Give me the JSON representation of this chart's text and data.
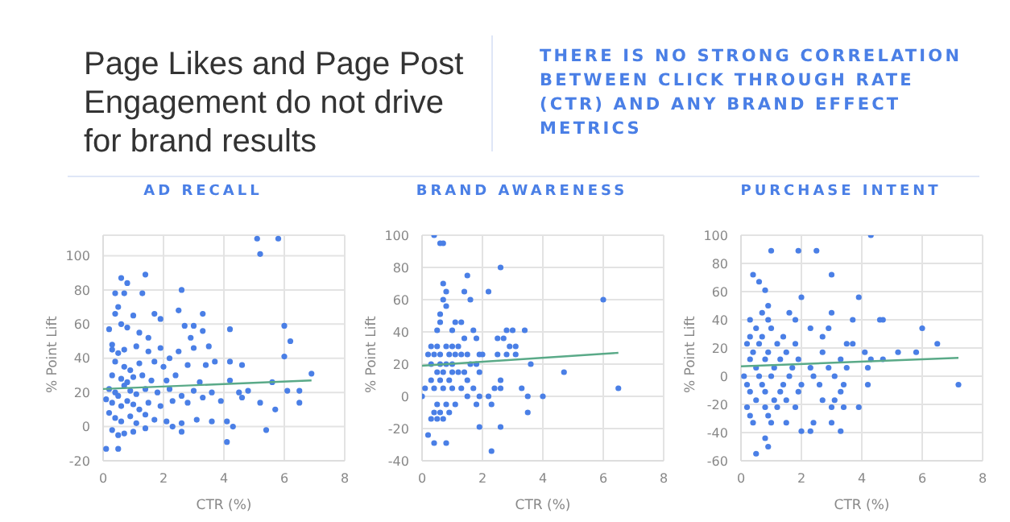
{
  "chart_data": [
    {
      "type": "other",
      "title": "Page Likes and Page Post Engagement do not drive for brand results",
      "subtitle": "THERE IS NO STRONG CORRELATION BETWEEN CLICK THROUGH RATE (CTR) AND ANY BRAND EFFECT METRICS"
    },
    {
      "type": "scatter",
      "title": "AD RECALL",
      "xlabel": "CTR (%)",
      "ylabel": "% Point Lift",
      "xlim": [
        0,
        8
      ],
      "xticks": [
        0,
        2,
        4,
        6,
        8
      ],
      "ylim": [
        -20,
        112
      ],
      "yticks": [
        -20,
        0,
        20,
        40,
        60,
        80,
        100
      ],
      "grid": true,
      "marker": "circle",
      "series": [
        {
          "type": "scatter",
          "color": "#4a7fe6",
          "x": [
            0.1,
            0.5,
            0.3,
            0.6,
            0.8,
            1.4,
            0.4,
            0.7,
            1.3,
            2.6,
            0.5,
            0.4,
            1.0,
            1.7,
            1.9,
            2.5,
            3.3,
            0.6,
            0.8,
            0.2,
            1.2,
            1.5,
            2.7,
            3.0,
            3.3,
            4.2,
            6.0,
            6.2,
            2.9,
            0.3,
            0.5,
            0.7,
            1.1,
            1.5,
            1.9,
            2.2,
            2.5,
            3.0,
            3.5,
            3.7,
            4.2,
            4.6,
            6.0,
            0.4,
            0.7,
            0.9,
            1.2,
            1.7,
            2.0,
            2.8,
            3.4,
            6.9,
            0.3,
            0.6,
            0.8,
            1.0,
            1.3,
            1.6,
            2.1,
            2.4,
            3.2,
            4.2,
            5.6,
            0.2,
            0.4,
            0.5,
            0.7,
            0.9,
            1.1,
            1.4,
            1.8,
            2.2,
            2.6,
            3.0,
            3.6,
            4.5,
            4.8,
            6.1,
            6.5,
            0.1,
            0.3,
            0.6,
            0.8,
            1.0,
            1.2,
            1.5,
            1.9,
            2.3,
            2.8,
            3.3,
            3.9,
            4.6,
            5.2,
            6.5,
            0.2,
            0.4,
            0.6,
            0.9,
            1.1,
            1.4,
            1.7,
            2.1,
            2.6,
            3.1,
            3.6,
            4.1,
            4.3,
            5.7,
            0.3,
            0.5,
            0.7,
            1.0,
            1.4,
            2.3,
            2.6,
            4.1,
            5.4,
            5.1,
            5.8,
            5.2
          ],
          "values": [
            -13,
            -13,
            48,
            87,
            84,
            89,
            78,
            78,
            78,
            80,
            70,
            66,
            65,
            66,
            63,
            68,
            66,
            60,
            58,
            57,
            55,
            52,
            59,
            59,
            56,
            57,
            59,
            50,
            52,
            45,
            43,
            45,
            47,
            44,
            46,
            40,
            44,
            46,
            47,
            38,
            38,
            36,
            41,
            38,
            35,
            33,
            37,
            38,
            35,
            36,
            36,
            31,
            30,
            28,
            26,
            29,
            30,
            27,
            27,
            30,
            26,
            27,
            26,
            22,
            20,
            18,
            24,
            21,
            19,
            22,
            20,
            22,
            18,
            21,
            20,
            20,
            21,
            21,
            21,
            16,
            14,
            12,
            15,
            13,
            10,
            14,
            12,
            15,
            14,
            17,
            15,
            17,
            14,
            14,
            8,
            5,
            3,
            6,
            2,
            7,
            4,
            3,
            2,
            4,
            3,
            3,
            0,
            10,
            -2,
            -5,
            -4,
            -3,
            -1,
            0,
            -3,
            -9,
            -2,
            110,
            110,
            101
          ]
        },
        {
          "type": "line",
          "color": "#5aaa88",
          "marker": "none",
          "x": [
            0,
            6.9
          ],
          "values": [
            22,
            27
          ]
        }
      ]
    },
    {
      "type": "scatter",
      "title": "BRAND AWARENESS",
      "xlabel": "CTR (%)",
      "ylabel": "% Point Lift",
      "xlim": [
        0,
        8
      ],
      "xticks": [
        0,
        2,
        4,
        6,
        8
      ],
      "ylim": [
        -40,
        100
      ],
      "yticks": [
        -40,
        -20,
        0,
        20,
        40,
        60,
        80,
        100
      ],
      "grid": true,
      "marker": "circle",
      "series": [
        {
          "type": "scatter",
          "color": "#4a7fe6",
          "x": [
            0.4,
            0.6,
            0.7,
            0.7,
            0.8,
            0.7,
            0.8,
            0.6,
            0.6,
            1.5,
            2.6,
            2.2,
            1.4,
            1.6,
            6.0,
            0.5,
            1.0,
            1.1,
            1.3,
            1.7,
            1.8,
            2.8,
            3.0,
            3.4,
            2.5,
            2.7,
            0.3,
            0.5,
            0.8,
            1.0,
            1.2,
            1.4,
            2.9,
            3.1,
            0.2,
            0.4,
            0.6,
            0.9,
            1.1,
            1.3,
            1.5,
            1.9,
            2.0,
            2.5,
            2.8,
            3.1,
            0.3,
            0.6,
            0.8,
            1.0,
            1.6,
            1.8,
            3.6,
            0.5,
            0.7,
            1.0,
            1.2,
            1.4,
            1.9,
            4.7,
            0.3,
            0.6,
            0.9,
            1.5,
            2.6,
            0.1,
            0.4,
            0.7,
            1.0,
            1.3,
            1.7,
            2.4,
            2.6,
            3.3,
            6.5,
            0.0,
            1.5,
            2.2,
            1.9,
            3.5,
            4.0,
            0.5,
            0.8,
            1.1,
            1.8,
            2.3,
            0.4,
            0.6,
            0.9,
            3.5,
            0.3,
            0.5,
            0.7,
            0.2,
            0.4,
            0.8,
            1.9,
            2.6,
            2.3
          ],
          "values": [
            100,
            95,
            95,
            70,
            65,
            60,
            56,
            51,
            46,
            75,
            80,
            65,
            65,
            60,
            60,
            41,
            41,
            46,
            46,
            41,
            36,
            41,
            41,
            41,
            36,
            36,
            31,
            31,
            31,
            31,
            31,
            36,
            31,
            31,
            26,
            26,
            26,
            26,
            26,
            26,
            26,
            26,
            26,
            26,
            26,
            26,
            20,
            20,
            20,
            20,
            20,
            20,
            20,
            15,
            15,
            15,
            15,
            15,
            15,
            15,
            10,
            10,
            10,
            10,
            10,
            5,
            5,
            5,
            5,
            5,
            5,
            5,
            5,
            5,
            5,
            0,
            0,
            0,
            0,
            0,
            0,
            -5,
            -5,
            -5,
            -5,
            -5,
            -10,
            -10,
            -10,
            -10,
            -14,
            -14,
            -14,
            -24,
            -29,
            -29,
            -19,
            -19,
            -34
          ]
        },
        {
          "type": "line",
          "color": "#5aaa88",
          "marker": "none",
          "x": [
            0,
            6.5
          ],
          "values": [
            19,
            27
          ]
        }
      ]
    },
    {
      "type": "scatter",
      "title": "PURCHASE INTENT",
      "xlabel": "CTR (%)",
      "ylabel": "% Point Lift",
      "xlim": [
        0,
        8
      ],
      "xticks": [
        0,
        2,
        4,
        6,
        8
      ],
      "ylim": [
        -60,
        100
      ],
      "yticks": [
        -60,
        -40,
        -20,
        0,
        20,
        40,
        60,
        80,
        100
      ],
      "grid": true,
      "marker": "circle",
      "series": [
        {
          "type": "scatter",
          "color": "#4a7fe6",
          "x": [
            4.3,
            1.0,
            1.9,
            2.5,
            0.4,
            3.0,
            0.6,
            0.8,
            2.0,
            3.9,
            0.9,
            0.7,
            1.6,
            3.0,
            0.3,
            0.9,
            1.8,
            3.7,
            4.6,
            4.7,
            0.5,
            1.0,
            2.3,
            2.9,
            6.0,
            0.3,
            0.7,
            1.4,
            2.7,
            3.5,
            3.7,
            6.5,
            0.2,
            0.6,
            1.2,
            1.8,
            0.4,
            0.9,
            1.5,
            2.7,
            4.1,
            5.2,
            5.8,
            0.3,
            0.8,
            1.3,
            1.9,
            3.3,
            4.3,
            4.7,
            0.5,
            1.1,
            1.7,
            2.3,
            2.9,
            3.5,
            4.2,
            0.1,
            0.6,
            1.0,
            1.6,
            2.4,
            3.1,
            0.2,
            0.7,
            1.4,
            2.0,
            2.6,
            3.4,
            4.2,
            7.2,
            0.3,
            0.8,
            1.3,
            1.9,
            3.3,
            0.5,
            1.1,
            1.5,
            2.7,
            3.1,
            0.2,
            0.8,
            1.2,
            1.8,
            3.0,
            3.4,
            3.9,
            0.3,
            0.9,
            0.4,
            1.0,
            1.5,
            2.4,
            3.0,
            2.0,
            2.3,
            3.3,
            0.8,
            0.9,
            0.5
          ],
          "values": [
            100,
            89,
            89,
            89,
            72,
            72,
            67,
            61,
            56,
            56,
            50,
            45,
            45,
            45,
            40,
            40,
            40,
            40,
            40,
            40,
            34,
            34,
            34,
            34,
            34,
            28,
            28,
            28,
            28,
            23,
            23,
            23,
            23,
            23,
            23,
            23,
            17,
            17,
            17,
            17,
            17,
            17,
            17,
            12,
            12,
            12,
            12,
            12,
            12,
            12,
            6,
            6,
            6,
            6,
            6,
            6,
            6,
            0,
            0,
            0,
            0,
            0,
            0,
            -6,
            -6,
            -6,
            -6,
            -6,
            -6,
            -6,
            -6,
            -11,
            -11,
            -11,
            -11,
            -11,
            -17,
            -17,
            -17,
            -17,
            -17,
            -22,
            -22,
            -22,
            -22,
            -22,
            -22,
            -22,
            -28,
            -28,
            -33,
            -33,
            -33,
            -33,
            -33,
            -39,
            -39,
            -39,
            -44,
            -50,
            -55
          ]
        },
        {
          "type": "line",
          "color": "#5aaa88",
          "marker": "none",
          "x": [
            0,
            7.2
          ],
          "values": [
            7,
            13
          ]
        }
      ]
    }
  ]
}
